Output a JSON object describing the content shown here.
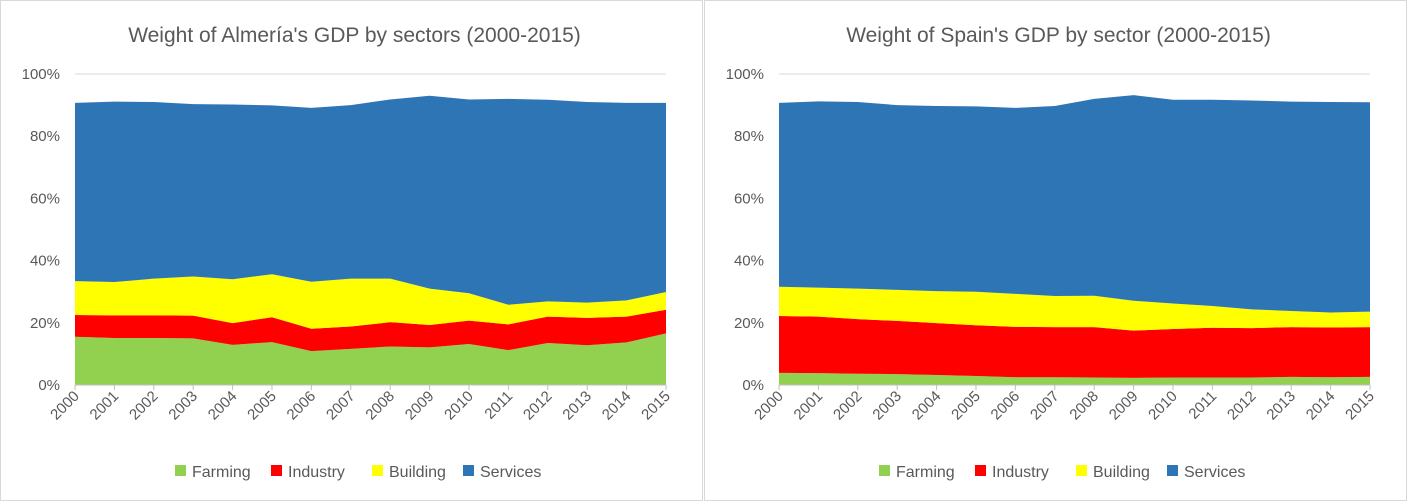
{
  "chart_data": [
    {
      "type": "area",
      "stacked": true,
      "title": "Weight of Almería's GDP by sectors (2000-2015)",
      "categories": [
        "2000",
        "2001",
        "2002",
        "2003",
        "2004",
        "2005",
        "2006",
        "2007",
        "2008",
        "2009",
        "2010",
        "2011",
        "2012",
        "2013",
        "2014",
        "2015"
      ],
      "yticks": [
        "0%",
        "20%",
        "40%",
        "60%",
        "80%",
        "100%"
      ],
      "ylim": [
        0,
        100
      ],
      "grid": true,
      "legend_position": "bottom",
      "series": [
        {
          "name": "Farming",
          "color": "#92d050",
          "values": [
            15.5,
            15.1,
            15.1,
            15.0,
            12.9,
            13.8,
            10.9,
            11.6,
            12.4,
            12.1,
            13.2,
            11.2,
            13.5,
            12.8,
            13.7,
            16.6
          ]
        },
        {
          "name": "Industry",
          "color": "#ff0000",
          "values": [
            7.0,
            7.3,
            7.3,
            7.3,
            7.0,
            8.0,
            7.2,
            7.2,
            7.8,
            7.2,
            7.5,
            8.3,
            8.5,
            8.8,
            8.3,
            7.6
          ]
        },
        {
          "name": "Building",
          "color": "#ffff00",
          "values": [
            10.9,
            10.7,
            11.8,
            12.6,
            14.1,
            13.8,
            15.1,
            15.4,
            14.0,
            11.7,
            8.8,
            6.3,
            4.9,
            4.9,
            5.2,
            5.7
          ]
        },
        {
          "name": "Services",
          "color": "#2e75b6",
          "values": [
            57.3,
            58.0,
            56.8,
            55.4,
            56.2,
            54.3,
            55.9,
            55.8,
            57.6,
            62.0,
            62.3,
            66.2,
            64.8,
            64.5,
            63.5,
            60.8
          ]
        }
      ]
    },
    {
      "type": "area",
      "stacked": true,
      "title": "Weight of Spain's GDP by sector (2000-2015)",
      "categories": [
        "2000",
        "2001",
        "2002",
        "2003",
        "2004",
        "2005",
        "2006",
        "2007",
        "2008",
        "2009",
        "2010",
        "2011",
        "2012",
        "2013",
        "2014",
        "2015"
      ],
      "yticks": [
        "0%",
        "20%",
        "40%",
        "60%",
        "80%",
        "100%"
      ],
      "ylim": [
        0,
        100
      ],
      "grid": true,
      "legend_position": "bottom",
      "series": [
        {
          "name": "Farming",
          "color": "#92d050",
          "values": [
            3.9,
            3.8,
            3.6,
            3.5,
            3.2,
            2.9,
            2.5,
            2.5,
            2.4,
            2.3,
            2.4,
            2.4,
            2.4,
            2.6,
            2.5,
            2.6
          ]
        },
        {
          "name": "Industry",
          "color": "#ff0000",
          "values": [
            18.3,
            18.2,
            17.6,
            17.1,
            16.7,
            16.3,
            16.2,
            16.1,
            16.2,
            15.2,
            15.6,
            16.0,
            15.9,
            16.0,
            16.0,
            16.0
          ]
        },
        {
          "name": "Building",
          "color": "#ffff00",
          "values": [
            9.4,
            9.3,
            9.8,
            10.0,
            10.3,
            10.8,
            10.6,
            10.0,
            10.1,
            9.6,
            8.2,
            7.0,
            6.0,
            5.2,
            4.8,
            5.0
          ]
        },
        {
          "name": "Services",
          "color": "#2e75b6",
          "values": [
            59.1,
            59.9,
            60.0,
            59.4,
            59.5,
            59.6,
            59.8,
            61.1,
            63.3,
            66.1,
            65.5,
            66.3,
            67.2,
            67.3,
            67.7,
            67.3
          ]
        }
      ]
    }
  ]
}
